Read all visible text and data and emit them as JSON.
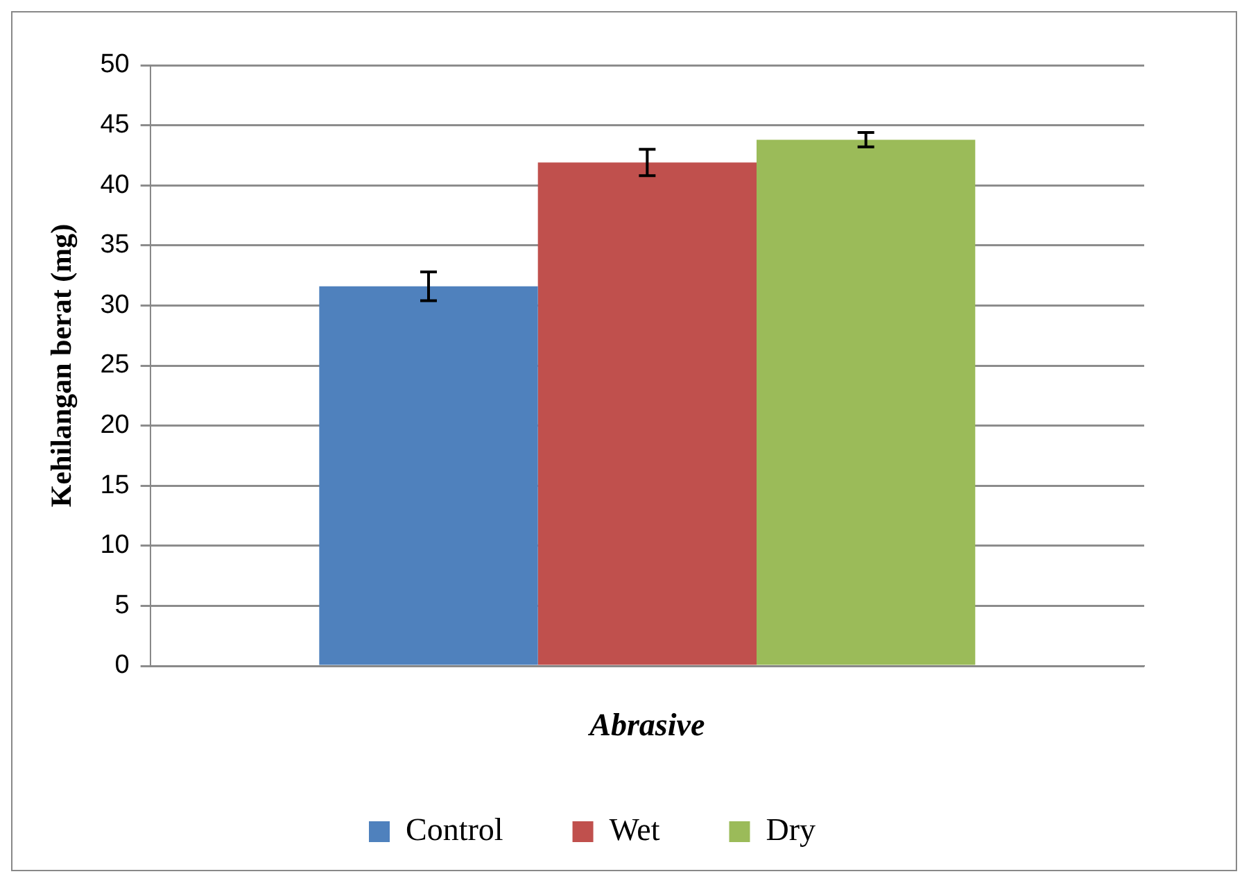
{
  "chart_data": {
    "type": "bar",
    "xlabel": "Abrasive",
    "ylabel": "Kehilangan berat (mg)",
    "categories": [
      null
    ],
    "series": [
      {
        "name": "Control",
        "color": "#4f81bd",
        "values": [
          31.6
        ],
        "errors": [
          1.2
        ]
      },
      {
        "name": "Wet",
        "color": "#c0504d",
        "values": [
          41.9
        ],
        "errors": [
          1.1
        ]
      },
      {
        "name": "Dry",
        "color": "#9bbb59",
        "values": [
          43.8
        ],
        "errors": [
          0.6
        ]
      }
    ],
    "ylim": [
      0,
      50
    ],
    "yticks": [
      0,
      5,
      10,
      15,
      20,
      25,
      30,
      35,
      40,
      45,
      50
    ],
    "grid": "y",
    "legend": "bottom"
  }
}
